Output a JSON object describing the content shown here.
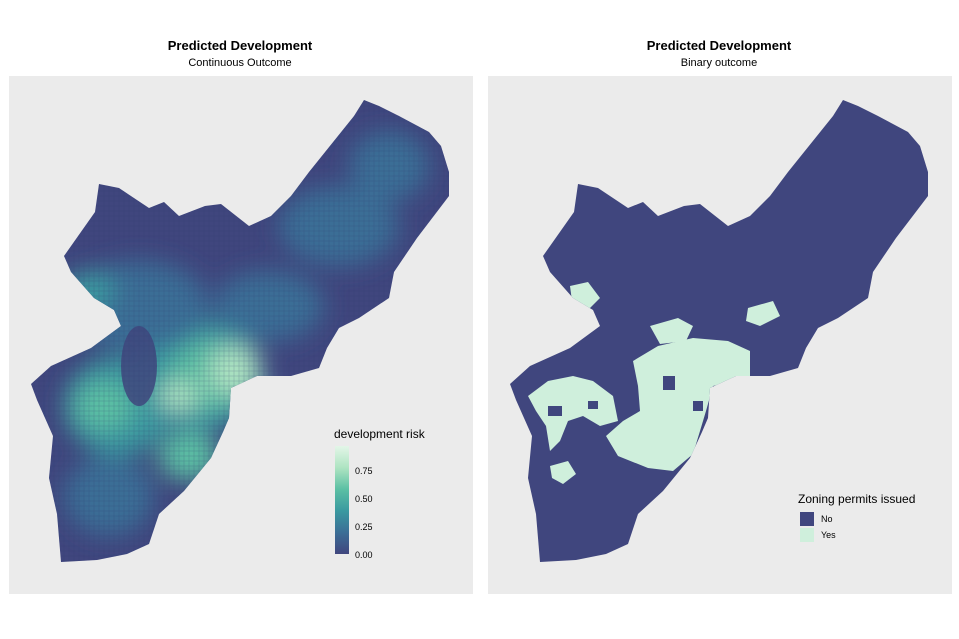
{
  "left_panel": {
    "title": "Predicted Development",
    "subtitle": "Continuous Outcome",
    "legend": {
      "title": "development risk",
      "ticks": [
        "0.75",
        "0.50",
        "0.25",
        "0.00"
      ],
      "gradient_colors": [
        "#40467e",
        "#3b6e96",
        "#3a9aa0",
        "#5cc0a4",
        "#aee4c2",
        "#e3f6e8"
      ]
    }
  },
  "right_panel": {
    "title": "Predicted Development",
    "subtitle": "Binary outcome",
    "legend": {
      "title": "Zoning permits issued",
      "entries": [
        {
          "label": "No",
          "color": "#40467e"
        },
        {
          "label": "Yes",
          "color": "#cfefdc"
        }
      ]
    }
  },
  "colors": {
    "panel_background": "#ebebeb",
    "map_base": "#40467e",
    "high_risk": "#cfefdc"
  }
}
